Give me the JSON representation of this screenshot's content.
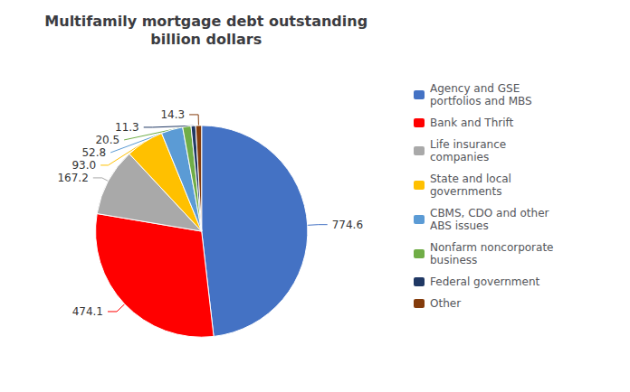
{
  "chart_data": {
    "type": "pie",
    "title": "Multifamily mortgage debt outstanding\nbillion dollars",
    "categories": [
      "Agency and GSE\nportfolios and MBS",
      "Bank and Thrift",
      "Life insurance\ncompanies",
      "State and local\ngovernments",
      "CBMS, CDO and other\nABS issues",
      "Nonfarm noncorporate\nbusiness",
      "Federal government",
      "Other"
    ],
    "values": [
      774.6,
      474.1,
      167.2,
      93.0,
      52.8,
      20.5,
      11.3,
      14.3
    ],
    "value_labels": [
      "774.6",
      "474.1",
      "167.2",
      "93.0",
      "52.8",
      "20.5",
      "11.3",
      "14.3"
    ],
    "colors": [
      "#4472C4",
      "#FF0000",
      "#A9A9A9",
      "#FFC000",
      "#5B9BD5",
      "#70AD47",
      "#203864",
      "#843C0C"
    ],
    "data_labels": true,
    "legend": "right"
  }
}
